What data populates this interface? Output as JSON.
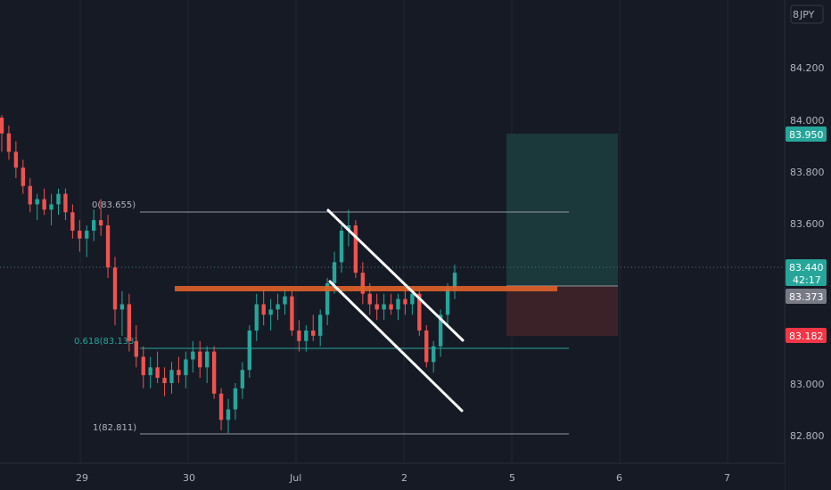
{
  "currency_label": "JPY",
  "currency_prefix": "8",
  "chart_data": {
    "type": "candlestick",
    "y_ticks": [
      "84.200",
      "84.000",
      "83.800",
      "83.600",
      "83.000",
      "82.800"
    ],
    "x_ticks": [
      {
        "label": "29",
        "day": "29"
      },
      {
        "label": "30",
        "day": "30"
      },
      {
        "label": "Jul",
        "day": "Jul"
      },
      {
        "label": "2",
        "day": "2"
      },
      {
        "label": "5",
        "day": "5"
      },
      {
        "label": "6",
        "day": "6"
      },
      {
        "label": "7",
        "day": "7"
      }
    ],
    "ylim": [
      82.72,
      84.36
    ],
    "price_badges": {
      "target": "83.950",
      "current": "83.440",
      "countdown": "42:17",
      "entry": "83.373",
      "stop": "83.182"
    },
    "fib_levels": [
      {
        "label": "0(83.655)",
        "price": 83.655,
        "color": "#b2b5be"
      },
      {
        "label": "0.618(83.133)",
        "price": 83.133,
        "color": "#26a69a"
      },
      {
        "label": "1(82.811)",
        "price": 82.811,
        "color": "#b2b5be"
      }
    ],
    "resistance_line": {
      "price": 83.373,
      "color": "#e0622a"
    },
    "position": {
      "entry": 83.373,
      "target": 83.95,
      "stop": 83.182
    },
    "candles_note": "approximate OHLC read from candlesticks",
    "candles": [
      [
        84.01,
        84.02,
        83.88,
        83.95
      ],
      [
        83.95,
        83.98,
        83.85,
        83.88
      ],
      [
        83.88,
        83.92,
        83.78,
        83.82
      ],
      [
        83.82,
        83.85,
        83.72,
        83.75
      ],
      [
        83.75,
        83.78,
        83.65,
        83.68
      ],
      [
        83.68,
        83.72,
        83.62,
        83.7
      ],
      [
        83.7,
        83.74,
        83.64,
        83.66
      ],
      [
        83.66,
        83.72,
        83.6,
        83.68
      ],
      [
        83.68,
        83.74,
        83.64,
        83.72
      ],
      [
        83.72,
        83.74,
        83.62,
        83.65
      ],
      [
        83.65,
        83.68,
        83.55,
        83.58
      ],
      [
        83.58,
        83.62,
        83.5,
        83.55
      ],
      [
        83.55,
        83.6,
        83.48,
        83.58
      ],
      [
        83.58,
        83.66,
        83.54,
        83.62
      ],
      [
        83.62,
        83.7,
        83.56,
        83.6
      ],
      [
        83.6,
        83.64,
        83.4,
        83.44
      ],
      [
        83.44,
        83.48,
        83.22,
        83.28
      ],
      [
        83.28,
        83.35,
        83.18,
        83.3
      ],
      [
        83.3,
        83.34,
        83.12,
        83.16
      ],
      [
        83.16,
        83.22,
        83.06,
        83.1
      ],
      [
        83.1,
        83.14,
        82.98,
        83.03
      ],
      [
        83.03,
        83.1,
        82.98,
        83.06
      ],
      [
        83.06,
        83.12,
        83.0,
        83.02
      ],
      [
        83.02,
        83.06,
        82.95,
        83.0
      ],
      [
        83.0,
        83.08,
        82.96,
        83.05
      ],
      [
        83.05,
        83.1,
        83.0,
        83.03
      ],
      [
        83.03,
        83.12,
        82.98,
        83.09
      ],
      [
        83.09,
        83.16,
        83.04,
        83.12
      ],
      [
        83.12,
        83.16,
        83.02,
        83.06
      ],
      [
        83.06,
        83.14,
        83.0,
        83.12
      ],
      [
        83.12,
        83.14,
        82.94,
        82.96
      ],
      [
        82.96,
        82.98,
        82.82,
        82.86
      ],
      [
        82.86,
        82.94,
        82.81,
        82.9
      ],
      [
        82.9,
        83.0,
        82.86,
        82.98
      ],
      [
        82.98,
        83.08,
        82.94,
        83.05
      ],
      [
        83.05,
        83.22,
        83.02,
        83.2
      ],
      [
        83.2,
        83.34,
        83.16,
        83.3
      ],
      [
        83.3,
        83.36,
        83.22,
        83.26
      ],
      [
        83.26,
        83.32,
        83.2,
        83.28
      ],
      [
        83.28,
        83.34,
        83.24,
        83.3
      ],
      [
        83.3,
        83.36,
        83.26,
        83.33
      ],
      [
        83.33,
        83.35,
        83.18,
        83.2
      ],
      [
        83.2,
        83.24,
        83.12,
        83.16
      ],
      [
        83.16,
        83.22,
        83.12,
        83.2
      ],
      [
        83.2,
        83.26,
        83.16,
        83.18
      ],
      [
        83.18,
        83.28,
        83.14,
        83.26
      ],
      [
        83.26,
        83.4,
        83.22,
        83.38
      ],
      [
        83.38,
        83.5,
        83.34,
        83.46
      ],
      [
        83.46,
        83.6,
        83.42,
        83.58
      ],
      [
        83.58,
        83.66,
        83.52,
        83.6
      ],
      [
        83.6,
        83.62,
        83.4,
        83.42
      ],
      [
        83.42,
        83.46,
        83.3,
        83.34
      ],
      [
        83.34,
        83.38,
        83.26,
        83.3
      ],
      [
        83.3,
        83.34,
        83.24,
        83.28
      ],
      [
        83.28,
        83.34,
        83.24,
        83.3
      ],
      [
        83.3,
        83.34,
        83.26,
        83.28
      ],
      [
        83.28,
        83.34,
        83.24,
        83.32
      ],
      [
        83.32,
        83.36,
        83.26,
        83.3
      ],
      [
        83.3,
        83.36,
        83.26,
        83.34
      ],
      [
        83.34,
        83.36,
        83.18,
        83.2
      ],
      [
        83.2,
        83.22,
        83.06,
        83.08
      ],
      [
        83.08,
        83.16,
        83.04,
        83.14
      ],
      [
        83.14,
        83.28,
        83.1,
        83.26
      ],
      [
        83.26,
        83.38,
        83.22,
        83.36
      ],
      [
        83.36,
        83.45,
        83.32,
        83.42
      ]
    ]
  }
}
